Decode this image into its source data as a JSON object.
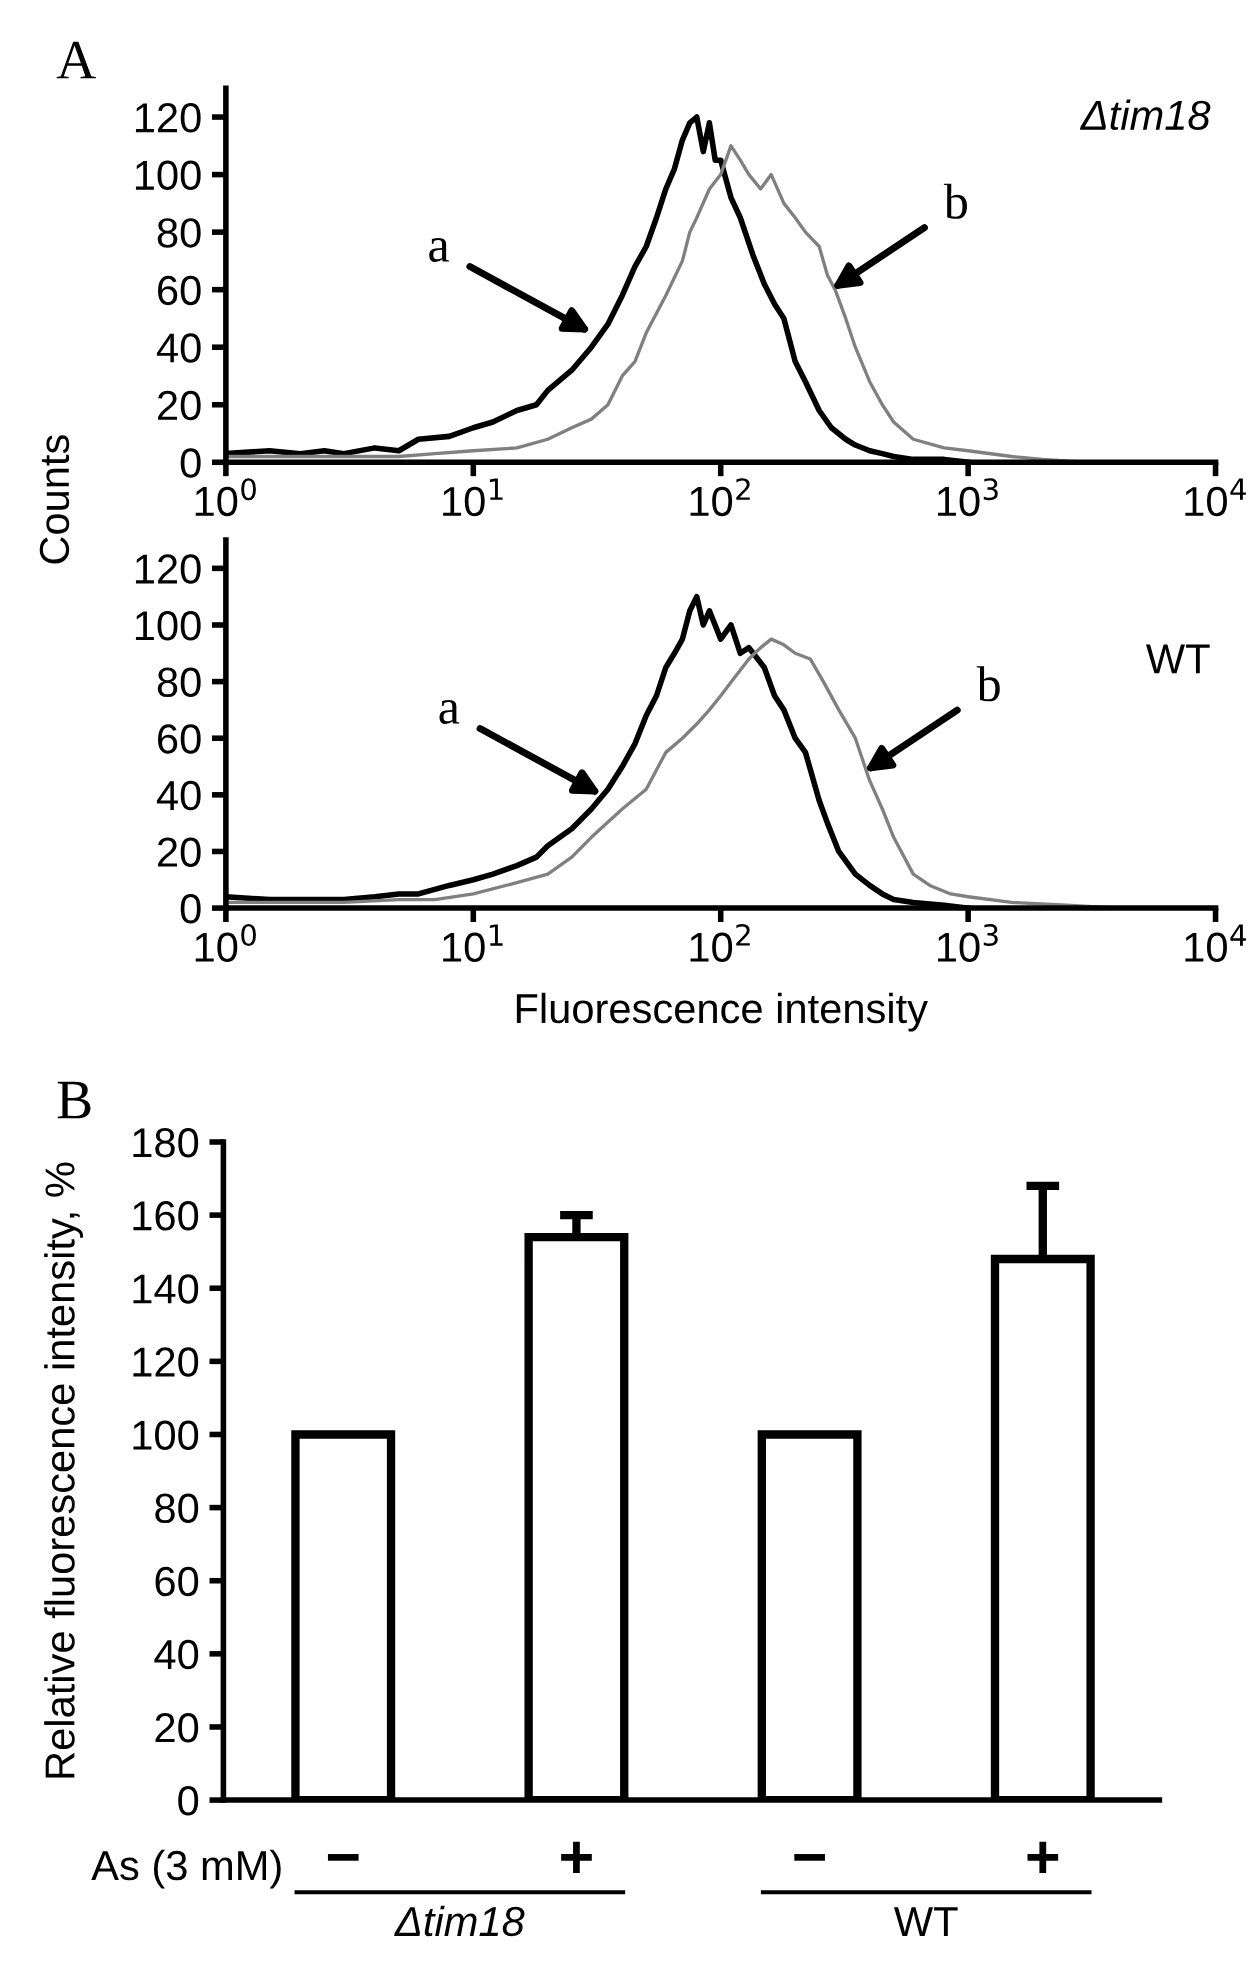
{
  "chart_data": [
    {
      "type": "line",
      "title": "A",
      "subtitle": "Δtim18",
      "ylabel": "Counts",
      "log": "x",
      "xlim": [
        1,
        10000
      ],
      "xticks": [
        {
          "value": 1,
          "label": "10$^{0}$"
        },
        {
          "value": 10,
          "label": "10$^{1}$"
        },
        {
          "value": 100,
          "label": "10$^{2}$"
        },
        {
          "value": 1000,
          "label": "10$^{3}$"
        },
        {
          "value": 10000,
          "label": "10$^{4}$"
        }
      ],
      "ylim": [
        0,
        130
      ],
      "yticks": [
        0,
        20,
        40,
        60,
        80,
        100,
        120
      ],
      "grid": false,
      "annotations": [
        {
          "text": "a",
          "x": 30,
          "y": 45
        },
        {
          "text": "b",
          "x": 280,
          "y": 60
        }
      ],
      "series": [
        {
          "color": "#000000",
          "x": [
            1,
            1.5,
            2,
            2.5,
            3,
            4,
            5,
            6,
            8,
            10,
            12,
            15,
            18,
            20,
            25,
            30,
            35,
            40,
            45,
            50,
            55,
            60,
            65,
            70,
            75,
            80,
            85,
            90,
            95,
            100,
            110,
            120,
            135,
            150,
            165,
            180,
            200,
            220,
            250,
            280,
            320,
            350,
            400,
            450,
            500,
            600,
            800,
            1000
          ],
          "values": [
            3,
            4,
            3,
            4,
            3,
            5,
            4,
            8,
            9,
            12,
            14,
            18,
            20,
            25,
            32,
            40,
            48,
            58,
            68,
            75,
            85,
            95,
            102,
            112,
            118,
            120,
            108,
            118,
            105,
            105,
            92,
            85,
            72,
            62,
            55,
            50,
            35,
            28,
            18,
            12,
            8,
            6,
            4,
            3,
            2,
            1,
            1,
            0
          ]
        },
        {
          "color": "#808080",
          "x": [
            1,
            2,
            3,
            5,
            7,
            10,
            15,
            20,
            25,
            30,
            35,
            40,
            45,
            50,
            60,
            70,
            75,
            80,
            90,
            100,
            110,
            120,
            130,
            145,
            160,
            180,
            200,
            220,
            250,
            270,
            290,
            320,
            350,
            400,
            450,
            500,
            600,
            800,
            1000,
            1500,
            2000,
            3000
          ],
          "values": [
            2,
            2,
            2,
            2,
            3,
            4,
            5,
            8,
            12,
            15,
            20,
            30,
            35,
            45,
            58,
            70,
            80,
            85,
            95,
            100,
            110,
            105,
            100,
            95,
            100,
            90,
            85,
            80,
            75,
            65,
            60,
            50,
            40,
            28,
            20,
            14,
            8,
            5,
            4,
            2,
            1,
            0
          ]
        }
      ]
    },
    {
      "type": "line",
      "subtitle": "WT",
      "xlabel": "Fluorescence intensity",
      "log": "x",
      "xlim": [
        1,
        10000
      ],
      "xticks": [
        {
          "value": 1,
          "label": "10$^{0}$"
        },
        {
          "value": 10,
          "label": "10$^{1}$"
        },
        {
          "value": 100,
          "label": "10$^{2}$"
        },
        {
          "value": 1000,
          "label": "10$^{3}$"
        },
        {
          "value": 10000,
          "label": "10$^{4}$"
        }
      ],
      "ylim": [
        0,
        130
      ],
      "yticks": [
        0,
        20,
        40,
        60,
        80,
        100,
        120
      ],
      "grid": false,
      "annotations": [
        {
          "text": "a",
          "x": 33,
          "y": 40
        },
        {
          "text": "b",
          "x": 380,
          "y": 48
        }
      ],
      "series": [
        {
          "color": "#000000",
          "x": [
            1,
            1.5,
            2,
            3,
            4,
            5,
            6,
            8,
            10,
            12,
            15,
            18,
            20,
            25,
            30,
            35,
            40,
            45,
            50,
            55,
            60,
            65,
            70,
            75,
            80,
            85,
            90,
            100,
            110,
            120,
            130,
            150,
            165,
            180,
            200,
            220,
            250,
            270,
            300,
            350,
            400,
            450,
            500,
            600,
            800,
            1000
          ],
          "values": [
            4,
            3,
            3,
            3,
            4,
            5,
            5,
            8,
            10,
            12,
            15,
            18,
            22,
            28,
            35,
            42,
            50,
            58,
            68,
            75,
            85,
            90,
            95,
            105,
            110,
            100,
            105,
            95,
            100,
            90,
            92,
            85,
            75,
            70,
            60,
            55,
            38,
            30,
            20,
            12,
            8,
            5,
            3,
            2,
            1,
            0
          ]
        },
        {
          "color": "#808080",
          "x": [
            1,
            2,
            3,
            5,
            7,
            10,
            15,
            20,
            25,
            30,
            40,
            50,
            60,
            70,
            80,
            90,
            100,
            115,
            130,
            145,
            160,
            180,
            200,
            230,
            260,
            300,
            350,
            400,
            450,
            500,
            600,
            700,
            850,
            1000,
            1500,
            2500,
            4000
          ],
          "values": [
            2,
            2,
            2,
            3,
            3,
            5,
            9,
            12,
            18,
            25,
            35,
            42,
            55,
            60,
            65,
            70,
            75,
            82,
            88,
            92,
            95,
            93,
            90,
            88,
            80,
            70,
            60,
            45,
            35,
            25,
            12,
            8,
            5,
            4,
            2,
            1,
            0
          ]
        }
      ]
    },
    {
      "type": "bar",
      "title": "B",
      "ylabel": "Relative fluorescence intensity, %",
      "categories": [
        "−",
        "+",
        "−",
        "+"
      ],
      "values": [
        100,
        154,
        100,
        148
      ],
      "color": "#ffffff",
      "errors": [
        null,
        [
          154,
          160
        ],
        null,
        [
          148,
          168
        ]
      ],
      "ylim": [
        0,
        180
      ],
      "yticks": [
        0,
        20,
        40,
        60,
        80,
        100,
        120,
        140,
        160,
        180
      ],
      "grid": false,
      "annotations": [
        "As (3 mM)",
        "Δtim18",
        "WT"
      ]
    }
  ]
}
